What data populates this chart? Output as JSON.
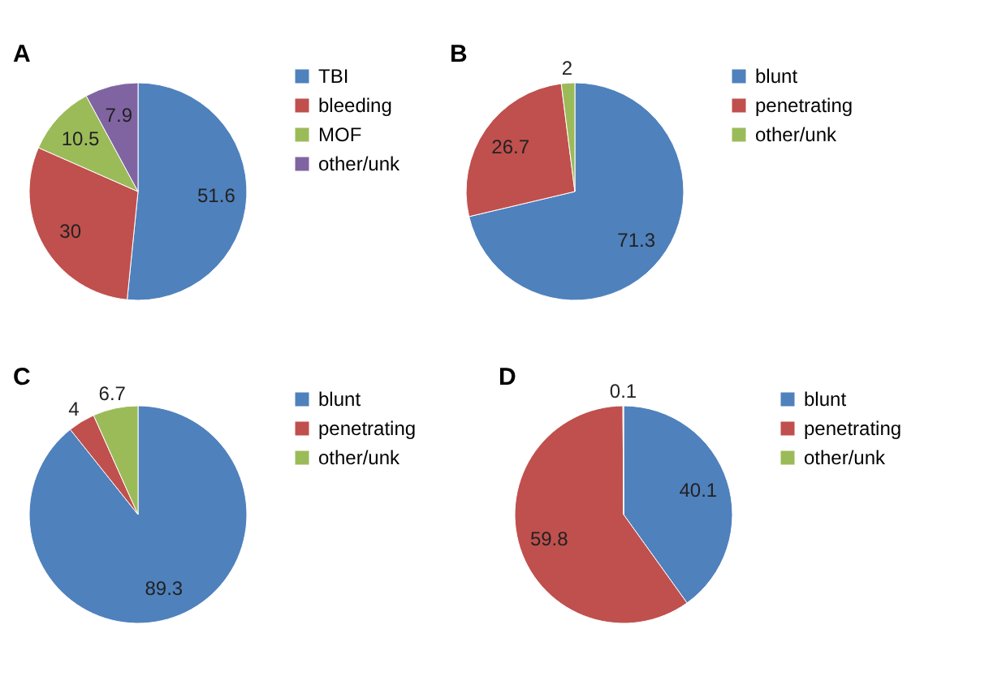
{
  "chart_data": [
    {
      "type": "pie",
      "title": "A",
      "categories": [
        "TBI",
        "bleeding",
        "MOF",
        "other/unk"
      ],
      "values": [
        51.6,
        30,
        10.5,
        7.9
      ],
      "colors": [
        "#4f81bd",
        "#c0504d",
        "#9bbb59",
        "#8064a2"
      ],
      "data_labels": true,
      "legend": "right"
    },
    {
      "type": "pie",
      "title": "B",
      "categories": [
        "blunt",
        "penetrating",
        "other/unk"
      ],
      "values": [
        71.3,
        26.7,
        2
      ],
      "colors": [
        "#4f81bd",
        "#c0504d",
        "#9bbb59"
      ],
      "data_labels": true,
      "legend": "right"
    },
    {
      "type": "pie",
      "title": "C",
      "categories": [
        "blunt",
        "penetrating",
        "other/unk"
      ],
      "values": [
        89.3,
        4,
        6.7
      ],
      "colors": [
        "#4f81bd",
        "#c0504d",
        "#9bbb59"
      ],
      "data_labels": true,
      "legend": "right"
    },
    {
      "type": "pie",
      "title": "D",
      "categories": [
        "blunt",
        "penetrating",
        "other/unk"
      ],
      "values": [
        40.1,
        59.8,
        0.1
      ],
      "colors": [
        "#4f81bd",
        "#c0504d",
        "#9bbb59"
      ],
      "data_labels": true,
      "legend": "right"
    }
  ]
}
